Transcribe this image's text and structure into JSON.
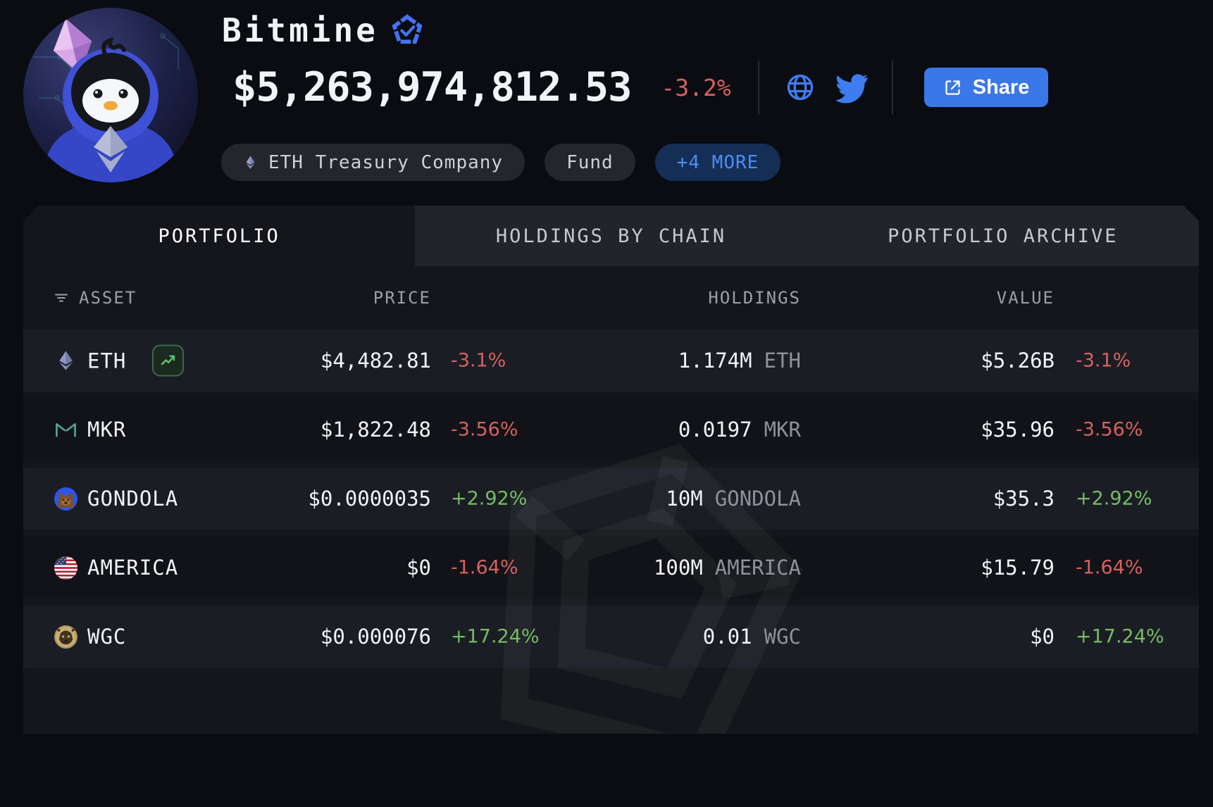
{
  "profile": {
    "name": "Bitmine",
    "verified_badge_icon": "verified-pentagon-check",
    "total_value": "$5,263,974,812.53",
    "total_change": "-3.2%",
    "links": [
      {
        "icon": "globe-icon"
      },
      {
        "icon": "twitter-icon"
      }
    ],
    "share_button": {
      "label": "Share",
      "icon": "external-link-icon"
    },
    "tags": [
      {
        "label": "ETH Treasury Company",
        "icon": "eth-icon"
      },
      {
        "label": "Fund"
      },
      {
        "label": "+4 MORE"
      }
    ]
  },
  "tabs": [
    {
      "label": "PORTFOLIO",
      "active": true
    },
    {
      "label": "HOLDINGS BY CHAIN",
      "active": false
    },
    {
      "label": "PORTFOLIO ARCHIVE",
      "active": false
    }
  ],
  "table": {
    "columns": {
      "asset": "ASSET",
      "price": "PRICE",
      "holdings": "HOLDINGS",
      "value": "VALUE"
    },
    "rows": [
      {
        "asset": "ETH",
        "icon": "eth",
        "has_chart_button": true,
        "price": "$4,482.81",
        "price_change": "-3.1%",
        "holdings_amount": "1.174M",
        "holdings_ticker": "ETH",
        "value": "$5.26B",
        "value_change": "-3.1%",
        "direction": "down"
      },
      {
        "asset": "MKR",
        "icon": "mkr",
        "has_chart_button": false,
        "price": "$1,822.48",
        "price_change": "-3.56%",
        "holdings_amount": "0.0197",
        "holdings_ticker": "MKR",
        "value": "$35.96",
        "value_change": "-3.56%",
        "direction": "down"
      },
      {
        "asset": "GONDOLA",
        "icon": "gondola",
        "has_chart_button": false,
        "price": "$0.0000035",
        "price_change": "+2.92%",
        "holdings_amount": "10M",
        "holdings_ticker": "GONDOLA",
        "value": "$35.3",
        "value_change": "+2.92%",
        "direction": "up"
      },
      {
        "asset": "AMERICA",
        "icon": "america",
        "has_chart_button": false,
        "price": "$0",
        "price_change": "-1.64%",
        "holdings_amount": "100M",
        "holdings_ticker": "AMERICA",
        "value": "$15.79",
        "value_change": "-1.64%",
        "direction": "down"
      },
      {
        "asset": "WGC",
        "icon": "wgc",
        "has_chart_button": false,
        "price": "$0.000076",
        "price_change": "+17.24%",
        "holdings_amount": "0.01",
        "holdings_ticker": "WGC",
        "value": "$0",
        "value_change": "+17.24%",
        "direction": "up"
      }
    ]
  },
  "colors": {
    "background": "#0a0c11",
    "panel": "#15161b",
    "row_stripe": "#1b1d24",
    "accent_blue": "#3a77e8",
    "link_blue": "#4e8cf6",
    "negative_red": "#d5615f",
    "positive_green": "#74bd62"
  }
}
